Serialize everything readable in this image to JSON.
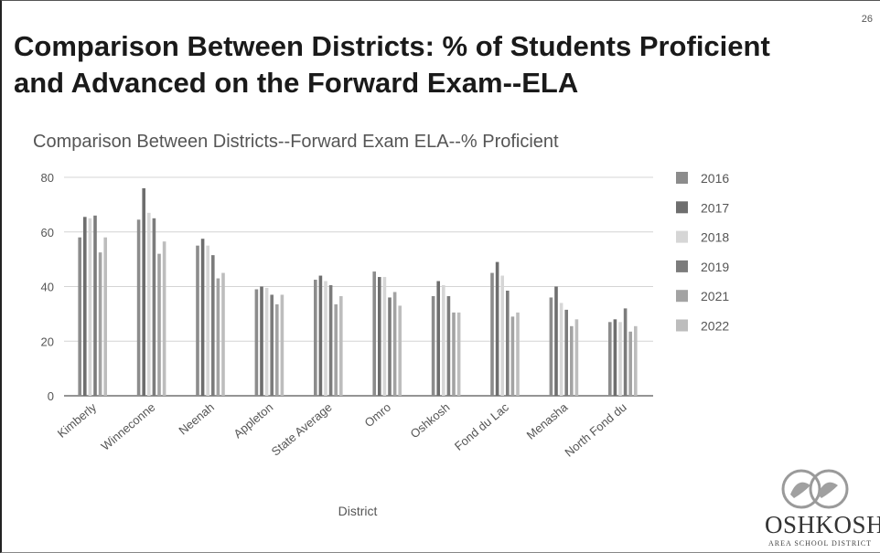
{
  "slide": {
    "number": "26",
    "title_lines": [
      "Comparison Between Districts:  % of Students Proficient",
      "and Advanced on the Forward Exam--ELA"
    ]
  },
  "logo": {
    "name": "OSHKOSH",
    "subtitle": "AREA SCHOOL DISTRICT"
  },
  "chart_data": {
    "type": "bar",
    "title": "Comparison Between Districts--Forward Exam ELA--% Proficient",
    "xlabel": "District",
    "ylabel": "",
    "ylim": [
      0,
      80
    ],
    "yticks": [
      0,
      20,
      40,
      60,
      80
    ],
    "grid": true,
    "legend_position": "right",
    "categories": [
      "Kimberly",
      "Winneconne",
      "Neenah",
      "Appleton",
      "State Average",
      "Omro",
      "Oshkosh",
      "Fond du Lac",
      "Menasha",
      "North Fond du"
    ],
    "series": [
      {
        "name": "2016",
        "color": "#8c8c8c",
        "values": [
          58,
          64.5,
          55,
          39,
          42.5,
          45.5,
          36.5,
          45,
          36,
          27
        ]
      },
      {
        "name": "2017",
        "color": "#6e6e6e",
        "values": [
          65.5,
          76,
          57.5,
          40,
          44,
          43.5,
          42,
          49,
          40,
          28
        ]
      },
      {
        "name": "2018",
        "color": "#d6d6d6",
        "values": [
          65,
          67,
          55,
          39.5,
          42,
          43.5,
          40.5,
          44,
          34,
          27
        ]
      },
      {
        "name": "2019",
        "color": "#7c7c7c",
        "values": [
          66,
          65,
          51.5,
          37,
          40.5,
          36,
          36.5,
          38.5,
          31.5,
          32
        ]
      },
      {
        "name": "2021",
        "color": "#a3a3a3",
        "values": [
          52.5,
          52,
          43,
          33.5,
          33.5,
          38,
          30.5,
          29,
          25.5,
          23.5
        ]
      },
      {
        "name": "2022",
        "color": "#bdbdbd",
        "values": [
          58,
          56.5,
          45,
          37,
          36.5,
          33,
          30.5,
          30.5,
          28,
          25.5
        ]
      }
    ]
  }
}
